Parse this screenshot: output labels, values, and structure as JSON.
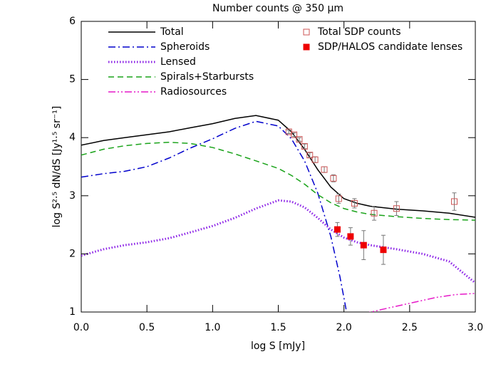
{
  "chart_data": {
    "type": "line",
    "title": "Number counts @ 350 μm",
    "x_label": "log S [mJy]",
    "y_label": "log S²·⁵ dN/dS [Jy¹·⁵ sr⁻¹]",
    "xlim": [
      0,
      3
    ],
    "ylim": [
      1,
      6
    ],
    "xticks": [
      {
        "value": 0,
        "label": "0.0"
      },
      {
        "value": 0.5,
        "label": "0.5"
      },
      {
        "value": 1,
        "label": "1.0"
      },
      {
        "value": 1.5,
        "label": "1.5"
      },
      {
        "value": 2,
        "label": "2.0"
      },
      {
        "value": 2.5,
        "label": "2.5"
      },
      {
        "value": 3,
        "label": "3.0"
      }
    ],
    "yticks": [
      1,
      2,
      3,
      4,
      5,
      6
    ],
    "series": [
      {
        "name": "Total",
        "type": "line",
        "style": "solid",
        "color": "#000000",
        "x": [
          0,
          0.17,
          0.33,
          0.5,
          0.67,
          0.83,
          1.0,
          1.17,
          1.33,
          1.5,
          1.6,
          1.7,
          1.8,
          1.9,
          2.0,
          2.1,
          2.2,
          2.4,
          2.6,
          2.8,
          3.0
        ],
        "values": [
          3.87,
          3.95,
          4.0,
          4.05,
          4.1,
          4.17,
          4.24,
          4.33,
          4.38,
          4.3,
          4.1,
          3.8,
          3.45,
          3.15,
          2.95,
          2.87,
          2.82,
          2.77,
          2.74,
          2.7,
          2.63
        ]
      },
      {
        "name": "Spheroids",
        "type": "line",
        "style": "dashdot",
        "color": "#0000cc",
        "x": [
          0,
          0.17,
          0.33,
          0.5,
          0.67,
          0.83,
          1.0,
          1.17,
          1.33,
          1.5,
          1.6,
          1.7,
          1.8,
          1.9,
          1.97,
          2.02
        ],
        "values": [
          3.32,
          3.38,
          3.42,
          3.5,
          3.65,
          3.82,
          3.98,
          4.16,
          4.28,
          4.2,
          3.98,
          3.6,
          3.05,
          2.3,
          1.6,
          1.0
        ]
      },
      {
        "name": "Lensed",
        "type": "line",
        "style": "dotted",
        "color": "#8a1fe6",
        "x": [
          0,
          0.17,
          0.33,
          0.5,
          0.67,
          0.83,
          1.0,
          1.17,
          1.33,
          1.5,
          1.6,
          1.7,
          1.8,
          1.9,
          2.0,
          2.1,
          2.2,
          2.4,
          2.6,
          2.8,
          3.0
        ],
        "values": [
          1.97,
          2.08,
          2.15,
          2.2,
          2.27,
          2.37,
          2.48,
          2.62,
          2.78,
          2.92,
          2.9,
          2.8,
          2.62,
          2.42,
          2.28,
          2.2,
          2.15,
          2.08,
          2.0,
          1.87,
          1.5
        ]
      },
      {
        "name": "Spirals+Starbursts",
        "type": "line",
        "style": "dashed",
        "color": "#1aa31a",
        "x": [
          0,
          0.17,
          0.33,
          0.5,
          0.67,
          0.83,
          1.0,
          1.17,
          1.33,
          1.5,
          1.6,
          1.7,
          1.8,
          1.9,
          2.0,
          2.1,
          2.2,
          2.4,
          2.6,
          2.8,
          3.0
        ],
        "values": [
          3.7,
          3.8,
          3.86,
          3.9,
          3.92,
          3.9,
          3.83,
          3.72,
          3.6,
          3.47,
          3.35,
          3.2,
          3.02,
          2.88,
          2.78,
          2.72,
          2.68,
          2.64,
          2.61,
          2.59,
          2.58
        ]
      },
      {
        "name": "Radiosources",
        "type": "line",
        "style": "dashdotdot",
        "color": "#e619c8",
        "x": [
          2.15,
          2.3,
          2.5,
          2.7,
          2.85,
          3.0
        ],
        "values": [
          0.97,
          1.05,
          1.15,
          1.25,
          1.3,
          1.32
        ]
      },
      {
        "name": "Total SDP counts",
        "type": "scatter",
        "marker": "open-square",
        "color": "#cc5555",
        "x": [
          1.58,
          1.62,
          1.66,
          1.7,
          1.74,
          1.78,
          1.85,
          1.92,
          1.96,
          2.08,
          2.23,
          2.4,
          2.84
        ],
        "values": [
          4.1,
          4.05,
          3.97,
          3.85,
          3.7,
          3.62,
          3.45,
          3.3,
          2.95,
          2.87,
          2.7,
          2.78,
          2.9
        ],
        "errors": [
          0.03,
          0.03,
          0.03,
          0.04,
          0.04,
          0.05,
          0.05,
          0.06,
          0.08,
          0.08,
          0.12,
          0.12,
          0.15
        ]
      },
      {
        "name": "SDP/HALOS candidate lenses",
        "type": "scatter",
        "marker": "filled-square",
        "color": "#ee0000",
        "x": [
          1.95,
          2.05,
          2.15,
          2.3
        ],
        "values": [
          2.42,
          2.3,
          2.15,
          2.07
        ],
        "errors": [
          0.12,
          0.15,
          0.25,
          0.25
        ]
      }
    ]
  }
}
